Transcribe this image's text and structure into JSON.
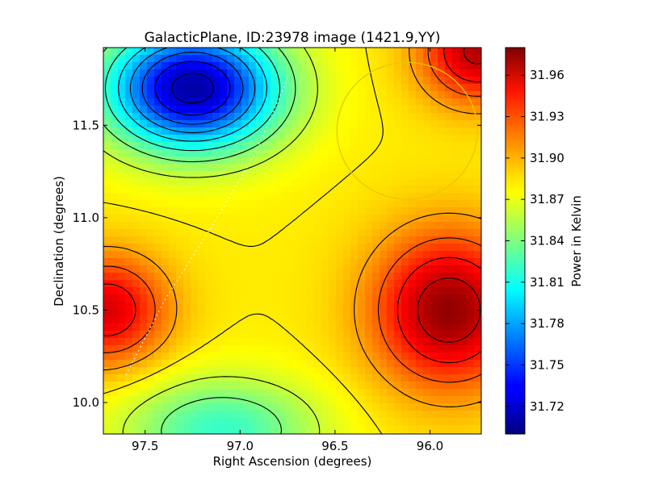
{
  "chart_data": {
    "type": "heatmap",
    "title": "GalacticPlane, ID:23978 image (1421.9,YY)",
    "xlabel": "Right Ascension (degrees)",
    "ylabel": "Declination (degrees)",
    "colorbar_label": "Power in Kelvin",
    "x_axis_inverted": true,
    "xlim": [
      97.72,
      95.73
    ],
    "ylim": [
      9.83,
      11.92
    ],
    "x_ticks": [
      97.5,
      97.0,
      96.5,
      96.0
    ],
    "x_tick_labels": [
      "97.5",
      "97.0",
      "96.5",
      "96.0"
    ],
    "y_ticks": [
      10.0,
      10.5,
      11.0,
      11.5
    ],
    "y_tick_labels": [
      "10.0",
      "10.5",
      "11.0",
      "11.5"
    ],
    "colorbar_range": [
      31.7,
      31.98
    ],
    "colorbar_ticks": [
      31.72,
      31.75,
      31.78,
      31.81,
      31.84,
      31.87,
      31.9,
      31.93,
      31.96
    ],
    "colorbar_tick_labels": [
      "31.72",
      "31.75",
      "31.78",
      "31.81",
      "31.84",
      "31.87",
      "31.90",
      "31.93",
      "31.96"
    ],
    "colormap": "jet",
    "contour_color": "#000000",
    "features": [
      {
        "kind": "minimum",
        "ra": 97.25,
        "dec": 11.7,
        "value": 31.7
      },
      {
        "kind": "maximum",
        "ra": 95.9,
        "dec": 10.5,
        "value": 31.975
      },
      {
        "kind": "maximum",
        "ra": 97.7,
        "dec": 10.5,
        "value": 31.955
      },
      {
        "kind": "maximum",
        "ra": 95.75,
        "dec": 11.9,
        "value": 31.97
      },
      {
        "kind": "minimum",
        "ra": 97.1,
        "dec": 9.85,
        "value": 31.81
      }
    ],
    "annotations": {
      "circle": {
        "ra": 96.12,
        "dec": 11.47,
        "radius_deg": 0.37,
        "color": "#e6c800"
      },
      "dotted_line": {
        "color": "#ffffff",
        "points": [
          [
            97.6,
            10.15
          ],
          [
            97.4,
            10.55
          ],
          [
            97.15,
            10.95
          ],
          [
            96.92,
            11.35
          ],
          [
            96.75,
            11.75
          ]
        ]
      }
    },
    "grid": false
  }
}
